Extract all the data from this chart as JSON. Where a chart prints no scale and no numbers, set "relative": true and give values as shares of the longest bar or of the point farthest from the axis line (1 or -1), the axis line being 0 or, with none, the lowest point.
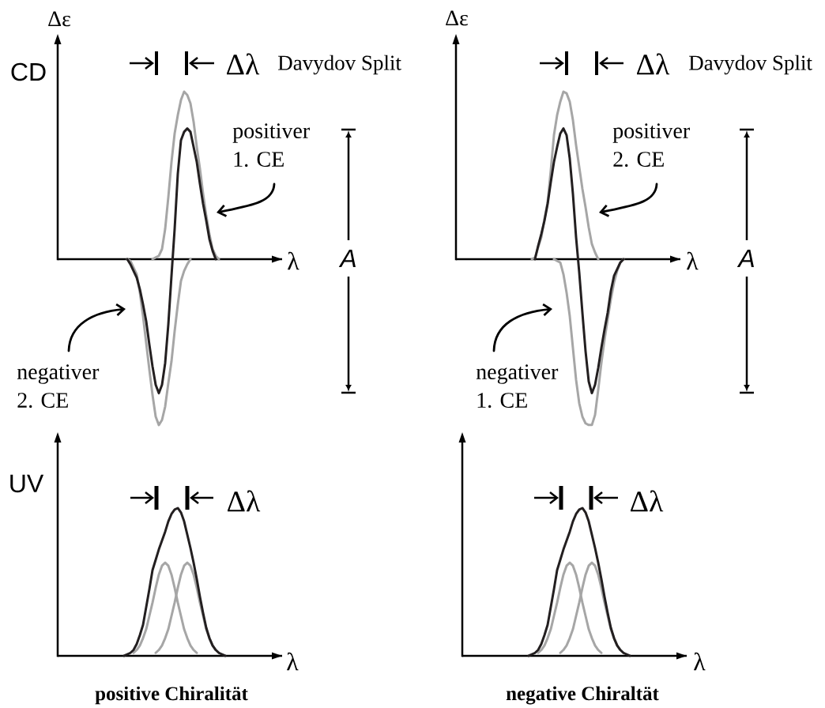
{
  "chart_data": [
    {
      "type": "line",
      "title": "CD",
      "ylabel": "Δε",
      "xlabel": "λ",
      "relative": true,
      "categories": [
        null,
        null,
        null,
        null,
        null,
        null,
        null,
        null,
        null,
        null,
        null,
        null,
        null,
        null,
        null,
        null,
        null,
        null,
        null,
        null,
        null,
        null,
        null,
        null,
        null,
        null,
        null,
        null,
        null,
        null,
        null,
        null,
        null,
        null,
        null,
        null,
        null,
        null,
        null,
        null,
        null,
        null,
        null,
        null,
        null,
        null,
        null,
        null,
        null,
        null,
        null,
        null,
        null,
        null,
        null,
        null,
        null,
        null,
        null,
        null,
        null,
        null,
        null,
        null,
        null,
        null,
        null,
        null,
        null,
        null,
        null,
        null
      ],
      "series": [
        {
          "color": "#a6a6a6",
          "values": [
            null,
            null,
            null,
            null,
            null,
            null,
            null,
            null,
            null,
            null,
            null,
            null,
            null,
            null,
            null,
            null,
            null,
            null,
            null,
            null,
            null,
            null,
            null,
            null,
            null,
            null,
            null,
            null,
            null,
            null,
            0,
            0.01,
            0.02,
            0.06,
            0.18,
            0.37,
            0.58,
            0.75,
            0.86,
            0.95,
            1,
            0.98,
            0.93,
            0.82,
            0.67,
            0.54,
            0.39,
            0.26,
            0.15,
            0.06,
            0.02,
            0,
            null,
            null,
            null,
            null,
            null,
            null,
            null,
            null,
            null,
            null,
            null,
            null,
            null,
            null,
            null,
            null,
            null,
            null,
            null,
            null
          ]
        },
        {
          "color": "#a6a6a6",
          "values": [
            null,
            null,
            null,
            null,
            null,
            null,
            null,
            null,
            null,
            null,
            null,
            null,
            null,
            null,
            null,
            null,
            null,
            null,
            null,
            null,
            null,
            null,
            0,
            -0.01,
            -0.05,
            -0.09,
            -0.2,
            -0.34,
            -0.5,
            -0.66,
            -0.81,
            -0.94,
            -0.99,
            -0.96,
            -0.88,
            -0.74,
            -0.61,
            -0.43,
            -0.27,
            -0.13,
            -0.07,
            -0.03,
            0,
            null,
            null,
            null,
            null,
            null,
            null,
            null,
            null,
            null,
            null,
            null,
            null,
            null,
            null,
            null,
            null,
            null,
            null,
            null,
            null,
            null,
            null,
            null,
            null,
            null,
            null,
            null,
            null,
            null
          ]
        },
        {
          "color": "#231f20",
          "values": [
            null,
            null,
            null,
            null,
            null,
            null,
            null,
            null,
            null,
            null,
            null,
            null,
            null,
            null,
            null,
            null,
            null,
            null,
            null,
            null,
            null,
            null,
            0,
            -0.03,
            -0.07,
            -0.11,
            -0.18,
            -0.27,
            -0.37,
            -0.51,
            -0.64,
            -0.75,
            -0.8,
            -0.75,
            -0.62,
            -0.39,
            -0.1,
            0.18,
            0.51,
            0.71,
            0.76,
            0.78,
            0.76,
            0.67,
            0.58,
            0.45,
            0.33,
            0.23,
            0.12,
            0.05,
            0,
            null,
            null,
            null,
            null,
            null,
            null,
            null,
            null,
            null,
            null,
            null,
            null,
            null,
            null,
            null,
            null,
            null,
            null,
            null,
            null,
            null
          ]
        }
      ],
      "annotations": [
        "Δλ",
        "Davydov Split",
        "positiver 1. CE",
        "negativer 2. CE",
        "A"
      ]
    },
    {
      "type": "line",
      "ylabel": "Δε",
      "xlabel": "λ",
      "relative": true,
      "categories": [
        null,
        null,
        null,
        null,
        null,
        null,
        null,
        null,
        null,
        null,
        null,
        null,
        null,
        null,
        null,
        null,
        null,
        null,
        null,
        null,
        null,
        null,
        null,
        null,
        null,
        null,
        null,
        null,
        null,
        null,
        null,
        null,
        null,
        null,
        null,
        null,
        null,
        null,
        null,
        null,
        null,
        null,
        null,
        null,
        null,
        null,
        null,
        null,
        null,
        null,
        null,
        null,
        null,
        null,
        null,
        null,
        null,
        null,
        null,
        null,
        null,
        null,
        null,
        null,
        null,
        null,
        null,
        null,
        null,
        null,
        null,
        null
      ],
      "series": [
        {
          "color": "#a6a6a6",
          "values": [
            null,
            null,
            null,
            null,
            null,
            null,
            null,
            null,
            null,
            null,
            null,
            null,
            null,
            null,
            null,
            null,
            null,
            null,
            null,
            null,
            null,
            null,
            null,
            null,
            0,
            0.01,
            0.07,
            0.13,
            0.24,
            0.34,
            0.53,
            0.74,
            0.86,
            0.94,
            1,
            0.99,
            0.94,
            0.83,
            0.68,
            0.55,
            0.42,
            0.31,
            0.19,
            0.09,
            0.04,
            0,
            null,
            null,
            null,
            null,
            null,
            null,
            null,
            null,
            null,
            null,
            null,
            null,
            null,
            null,
            null,
            null,
            null,
            null,
            null,
            null,
            null,
            null,
            null,
            null,
            null,
            null
          ]
        },
        {
          "color": "#a6a6a6",
          "values": [
            null,
            null,
            null,
            null,
            null,
            null,
            null,
            null,
            null,
            null,
            null,
            null,
            null,
            null,
            null,
            null,
            null,
            null,
            null,
            null,
            null,
            null,
            null,
            null,
            null,
            null,
            null,
            null,
            null,
            null,
            null,
            0,
            -0.01,
            -0.02,
            -0.09,
            -0.2,
            -0.34,
            -0.53,
            -0.72,
            -0.86,
            -0.94,
            -0.98,
            -0.99,
            -0.99,
            -0.93,
            -0.78,
            -0.62,
            -0.48,
            -0.36,
            -0.24,
            -0.14,
            -0.07,
            -0.02,
            0,
            null,
            null,
            null,
            null,
            null,
            null,
            null,
            null,
            null,
            null,
            null,
            null,
            null,
            null,
            null,
            null,
            null,
            null
          ]
        },
        {
          "color": "#231f20",
          "values": [
            null,
            null,
            null,
            null,
            null,
            null,
            null,
            null,
            null,
            null,
            null,
            null,
            null,
            null,
            null,
            null,
            null,
            null,
            null,
            null,
            null,
            null,
            null,
            null,
            null,
            0,
            0.08,
            0.15,
            0.23,
            0.33,
            0.46,
            0.58,
            0.67,
            0.75,
            0.78,
            0.74,
            0.6,
            0.39,
            0.13,
            -0.08,
            -0.32,
            -0.55,
            -0.73,
            -0.8,
            -0.75,
            -0.65,
            -0.53,
            -0.42,
            -0.32,
            -0.19,
            -0.1,
            -0.06,
            -0.02,
            0,
            null,
            null,
            null,
            null,
            null,
            null,
            null,
            null,
            null,
            null,
            null,
            null,
            null,
            null,
            null,
            null,
            null,
            null
          ]
        }
      ],
      "annotations": [
        "Δλ",
        "Davydov Split",
        "positiver 2. CE",
        "negativer 1. CE",
        "A"
      ]
    },
    {
      "type": "line",
      "title": "UV",
      "xlabel": "λ",
      "relative": true,
      "categories": [
        null,
        null,
        null,
        null,
        null,
        null,
        null,
        null,
        null,
        null,
        null,
        null,
        null,
        null,
        null,
        null,
        null,
        null,
        null,
        null,
        null,
        null,
        null,
        null,
        null,
        null,
        null,
        null,
        null,
        null,
        null,
        null,
        null,
        null,
        null,
        null,
        null,
        null,
        null,
        null,
        null,
        null,
        null,
        null,
        null,
        null,
        null,
        null,
        null,
        null,
        null,
        null,
        null,
        null,
        null,
        null,
        null,
        null,
        null,
        null,
        null,
        null,
        null,
        null,
        null,
        null,
        null,
        null,
        null,
        null,
        null,
        null
      ],
      "series": [
        {
          "color": "#a6a6a6",
          "values": [
            null,
            null,
            null,
            null,
            null,
            null,
            null,
            null,
            null,
            null,
            null,
            null,
            null,
            null,
            null,
            null,
            null,
            null,
            null,
            null,
            null,
            null,
            null,
            null,
            0.02,
            0.04,
            0.07,
            0.12,
            0.18,
            0.27,
            0.36,
            0.46,
            0.55,
            0.61,
            0.63,
            0.61,
            0.55,
            0.46,
            0.36,
            0.27,
            0.18,
            0.12,
            0.07,
            0.04,
            0.02,
            null,
            null,
            null,
            null,
            null,
            null,
            null,
            null,
            null,
            null,
            null,
            null,
            null,
            null,
            null,
            null,
            null,
            null,
            null,
            null,
            null,
            null,
            null,
            null,
            null,
            null,
            null
          ]
        },
        {
          "color": "#a6a6a6",
          "values": [
            null,
            null,
            null,
            null,
            null,
            null,
            null,
            null,
            null,
            null,
            null,
            null,
            null,
            null,
            null,
            null,
            null,
            null,
            null,
            null,
            null,
            null,
            null,
            null,
            null,
            null,
            null,
            null,
            null,
            null,
            null,
            0.02,
            0.04,
            0.07,
            0.12,
            0.18,
            0.27,
            0.36,
            0.46,
            0.55,
            0.61,
            0.63,
            0.61,
            0.55,
            0.46,
            0.36,
            0.27,
            0.18,
            0.12,
            0.07,
            0.04,
            0.02,
            null,
            null,
            null,
            null,
            null,
            null,
            null,
            null,
            null,
            null,
            null,
            null,
            null,
            null,
            null,
            null,
            null,
            null,
            null,
            null
          ]
        },
        {
          "color": "#231f20",
          "values": [
            null,
            null,
            null,
            null,
            null,
            null,
            null,
            null,
            null,
            null,
            null,
            null,
            null,
            null,
            null,
            null,
            null,
            null,
            null,
            null,
            null,
            0,
            0.01,
            0.02,
            0.04,
            0.08,
            0.14,
            0.21,
            0.33,
            0.45,
            0.58,
            0.65,
            0.72,
            0.78,
            0.84,
            0.91,
            0.96,
            0.99,
            1,
            0.97,
            0.91,
            0.82,
            0.73,
            0.63,
            0.52,
            0.4,
            0.29,
            0.19,
            0.12,
            0.07,
            0.04,
            0.02,
            0.01,
            0,
            null,
            null,
            null,
            null,
            null,
            null,
            null,
            null,
            null,
            null,
            null,
            null,
            null,
            null,
            null,
            null,
            null,
            null
          ]
        }
      ],
      "annotations": [
        "Δλ",
        "positive Chiralität"
      ]
    },
    {
      "type": "line",
      "xlabel": "λ",
      "relative": true,
      "categories": [
        null,
        null,
        null,
        null,
        null,
        null,
        null,
        null,
        null,
        null,
        null,
        null,
        null,
        null,
        null,
        null,
        null,
        null,
        null,
        null,
        null,
        null,
        null,
        null,
        null,
        null,
        null,
        null,
        null,
        null,
        null,
        null,
        null,
        null,
        null,
        null,
        null,
        null,
        null,
        null,
        null,
        null,
        null,
        null,
        null,
        null,
        null,
        null,
        null,
        null,
        null,
        null,
        null,
        null,
        null,
        null,
        null,
        null,
        null,
        null,
        null,
        null,
        null,
        null,
        null,
        null,
        null,
        null,
        null,
        null,
        null,
        null
      ],
      "series": [
        {
          "color": "#a6a6a6",
          "values": [
            null,
            null,
            null,
            null,
            null,
            null,
            null,
            null,
            null,
            null,
            null,
            null,
            null,
            null,
            null,
            null,
            null,
            null,
            null,
            null,
            null,
            null,
            null,
            null,
            0.02,
            0.04,
            0.07,
            0.12,
            0.18,
            0.27,
            0.36,
            0.46,
            0.55,
            0.61,
            0.63,
            0.61,
            0.55,
            0.46,
            0.36,
            0.27,
            0.18,
            0.12,
            0.07,
            0.04,
            0.02,
            null,
            null,
            null,
            null,
            null,
            null,
            null,
            null,
            null,
            null,
            null,
            null,
            null,
            null,
            null,
            null,
            null,
            null,
            null,
            null,
            null,
            null,
            null,
            null,
            null,
            null,
            null
          ]
        },
        {
          "color": "#a6a6a6",
          "values": [
            null,
            null,
            null,
            null,
            null,
            null,
            null,
            null,
            null,
            null,
            null,
            null,
            null,
            null,
            null,
            null,
            null,
            null,
            null,
            null,
            null,
            null,
            null,
            null,
            null,
            null,
            null,
            null,
            null,
            null,
            null,
            0.02,
            0.04,
            0.07,
            0.12,
            0.18,
            0.27,
            0.36,
            0.46,
            0.55,
            0.61,
            0.63,
            0.61,
            0.55,
            0.46,
            0.36,
            0.27,
            0.18,
            0.12,
            0.07,
            0.04,
            0.02,
            null,
            null,
            null,
            null,
            null,
            null,
            null,
            null,
            null,
            null,
            null,
            null,
            null,
            null,
            null,
            null,
            null,
            null,
            null,
            null
          ]
        },
        {
          "color": "#231f20",
          "values": [
            null,
            null,
            null,
            null,
            null,
            null,
            null,
            null,
            null,
            null,
            null,
            null,
            null,
            null,
            null,
            null,
            null,
            null,
            null,
            null,
            null,
            0,
            0.01,
            0.02,
            0.04,
            0.08,
            0.14,
            0.21,
            0.33,
            0.45,
            0.58,
            0.65,
            0.72,
            0.78,
            0.84,
            0.91,
            0.96,
            0.99,
            1,
            0.97,
            0.91,
            0.82,
            0.73,
            0.63,
            0.52,
            0.4,
            0.29,
            0.19,
            0.12,
            0.07,
            0.04,
            0.02,
            0.01,
            0,
            null,
            null,
            null,
            null,
            null,
            null,
            null,
            null,
            null,
            null,
            null,
            null,
            null,
            null,
            null,
            null,
            null,
            null
          ]
        }
      ],
      "annotations": [
        "Δλ",
        "negative Chiraltät"
      ]
    }
  ]
}
